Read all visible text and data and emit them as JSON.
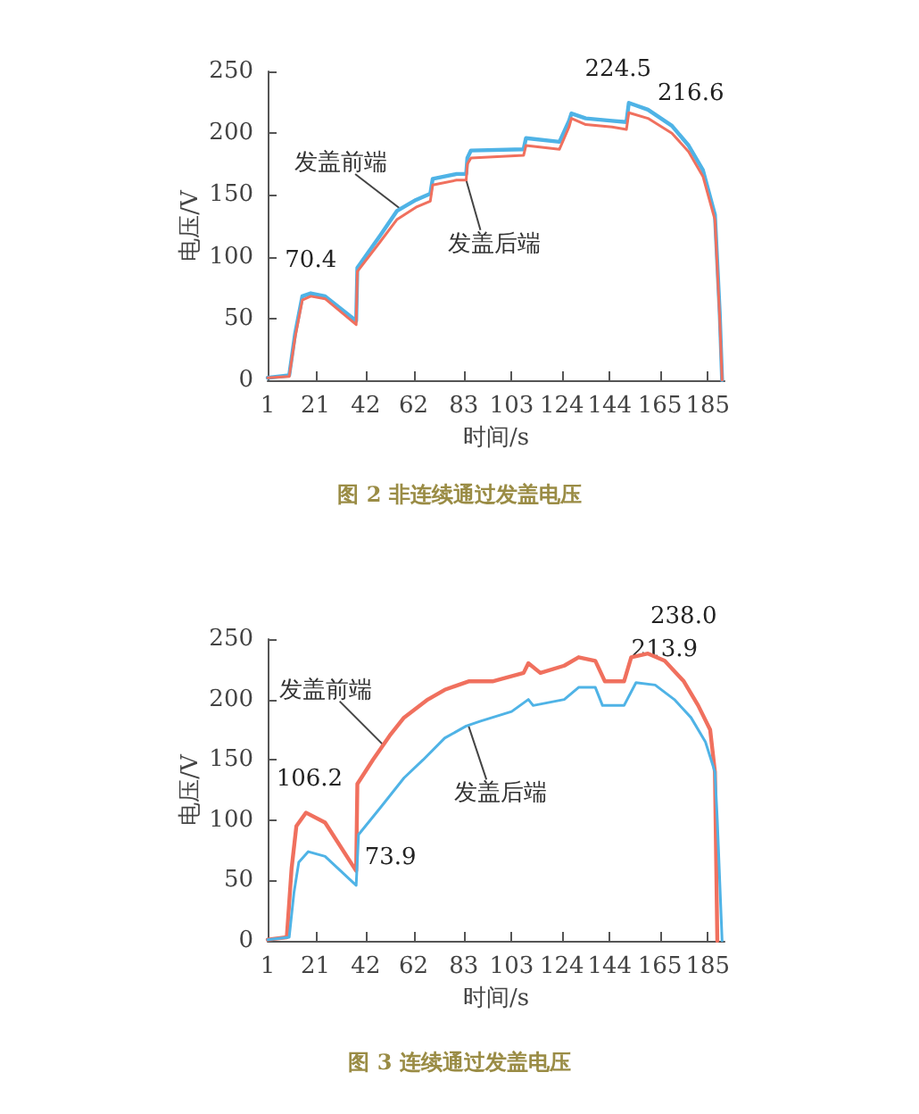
{
  "chart_data": [
    {
      "type": "line",
      "title": "图 2 非连续通过发盖电压",
      "xlabel": "时间/s",
      "ylabel": "电压/V",
      "xlim": [
        1,
        192
      ],
      "xticks": [
        1,
        21,
        42,
        62,
        83,
        103,
        124,
        144,
        165,
        185
      ],
      "ylim": [
        0,
        250
      ],
      "yticks": [
        0,
        50,
        100,
        150,
        200,
        250
      ],
      "grid": false,
      "legend": false,
      "marker": "none",
      "line_style": "solid",
      "series": [
        {
          "name": "发盖前端",
          "color": "#4fb3e6",
          "x": [
            1,
            10,
            12.5,
            15.5,
            19,
            25,
            38,
            38.5,
            48,
            55,
            63,
            69,
            70,
            80,
            84,
            84.5,
            86,
            108,
            109,
            123,
            127,
            128,
            134,
            145,
            151,
            152,
            160,
            170,
            177,
            183,
            188,
            190,
            191
          ],
          "values": [
            2,
            4,
            38,
            68,
            70.4,
            68,
            48,
            91,
            117,
            137,
            146,
            151,
            163,
            167,
            167,
            180,
            186,
            187,
            196,
            193,
            210,
            216,
            212,
            210,
            209,
            224.5,
            219,
            206,
            190,
            170,
            134,
            55,
            0
          ]
        },
        {
          "name": "发盖后端",
          "color": "#f0705e",
          "x": [
            1,
            10,
            12.5,
            15.5,
            19,
            25,
            38,
            38.5,
            48,
            55,
            63,
            69,
            70,
            80,
            84,
            84.5,
            86,
            108,
            109,
            123,
            127,
            128,
            134,
            145,
            151,
            152,
            160,
            170,
            177,
            183,
            188,
            190,
            191
          ],
          "values": [
            2,
            3,
            35,
            65,
            68,
            66,
            45,
            88,
            112,
            130,
            140,
            145,
            158,
            162,
            162,
            175,
            180,
            182,
            190,
            187,
            205,
            212,
            207,
            205,
            203,
            216.6,
            212,
            200,
            185,
            165,
            130,
            50,
            0
          ]
        }
      ],
      "annotations": [
        {
          "text": "70.4",
          "x": 19,
          "y": 70.4
        },
        {
          "text": "224.5",
          "x": 152,
          "y": 224.5
        },
        {
          "text": "216.6",
          "x": 160,
          "y": 216.6
        }
      ]
    },
    {
      "type": "line",
      "title": "图 3 连续通过发盖电压",
      "xlabel": "时间/s",
      "ylabel": "电压/V",
      "xlim": [
        1,
        192
      ],
      "xticks": [
        1,
        21,
        42,
        62,
        83,
        103,
        124,
        144,
        165,
        185
      ],
      "ylim": [
        0,
        250
      ],
      "yticks": [
        0,
        50,
        100,
        150,
        200,
        250
      ],
      "grid": false,
      "legend": false,
      "marker": "none",
      "line_style": "solid",
      "series": [
        {
          "name": "发盖前端",
          "color": "#f0705e",
          "x": [
            1,
            9,
            11,
            13,
            17,
            25,
            38,
            38.5,
            45,
            52,
            58,
            68,
            75,
            85,
            95,
            108,
            110,
            115,
            125,
            131,
            138,
            142,
            150,
            153,
            160,
            167,
            175,
            181,
            186,
            188,
            189
          ],
          "values": [
            1,
            3,
            60,
            95,
            106.2,
            98,
            58,
            130,
            150,
            170,
            185,
            200,
            208,
            215,
            215,
            222,
            230,
            222,
            228,
            235,
            232,
            215,
            215,
            235,
            238,
            232,
            215,
            195,
            175,
            140,
            0
          ]
        },
        {
          "name": "发盖后端",
          "color": "#4fb3e6",
          "x": [
            1,
            10,
            12,
            14,
            18,
            25,
            38,
            39,
            48,
            58,
            66,
            75,
            84,
            90,
            103,
            110,
            112,
            125,
            131,
            138,
            141,
            150,
            155,
            163,
            171,
            178,
            184,
            188,
            189,
            191
          ],
          "values": [
            1,
            3,
            40,
            65,
            73.9,
            70,
            46,
            88,
            110,
            135,
            150,
            168,
            178,
            182,
            190,
            200,
            195,
            200,
            210,
            210,
            195,
            195,
            213.9,
            212,
            200,
            185,
            165,
            140,
            100,
            0
          ]
        }
      ],
      "annotations": [
        {
          "text": "106.2",
          "x": 17,
          "y": 106.2
        },
        {
          "text": "73.9",
          "x": 18,
          "y": 73.9
        },
        {
          "text": "238.0",
          "x": 160,
          "y": 238.0
        },
        {
          "text": "213.9",
          "x": 155,
          "y": 213.9
        }
      ]
    }
  ]
}
